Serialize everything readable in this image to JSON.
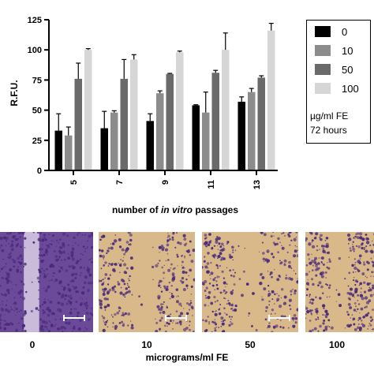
{
  "chart_data": {
    "type": "bar",
    "xlabel_parts": [
      "number of ",
      "in vitro",
      " passages"
    ],
    "ylabel": "R.F.U.",
    "ylim": [
      0,
      125
    ],
    "yticks": [
      "0",
      "25",
      "50",
      "75",
      "100",
      "125"
    ],
    "categories": [
      "5",
      "7",
      "9",
      "11",
      "13"
    ],
    "series": [
      {
        "name": "0",
        "color": "#000000",
        "values": [
          33,
          35,
          41,
          54,
          57
        ],
        "errors": [
          14,
          14,
          6,
          0.5,
          4
        ]
      },
      {
        "name": "10",
        "color": "#8c8c8c",
        "values": [
          29,
          48,
          64,
          48,
          65
        ],
        "errors": [
          7,
          1.5,
          2,
          17,
          3
        ]
      },
      {
        "name": "50",
        "color": "#6a6a6a",
        "values": [
          76,
          76,
          80,
          81,
          77
        ],
        "errors": [
          13,
          16,
          0.5,
          2,
          1.5
        ]
      },
      {
        "name": "100",
        "color": "#d6d6d6",
        "values": [
          100,
          92,
          98,
          100,
          116
        ],
        "errors": [
          1,
          4,
          1,
          14,
          6
        ]
      }
    ],
    "legend_position": "right",
    "legend_note": [
      "µg/ml FE",
      "72 hours"
    ]
  },
  "micrographs": {
    "panels": [
      {
        "label": "0",
        "stain": "dense"
      },
      {
        "label": "10",
        "stain": "sparse"
      },
      {
        "label": "50",
        "stain": "sparse"
      },
      {
        "label": "100",
        "stain": "sparse"
      }
    ],
    "axis_label": "micrograms/ml FE",
    "colors": {
      "stain": "#4a2a7a",
      "background_dense": "#6b4a9a",
      "background_sparse": "#d9b98a"
    }
  }
}
